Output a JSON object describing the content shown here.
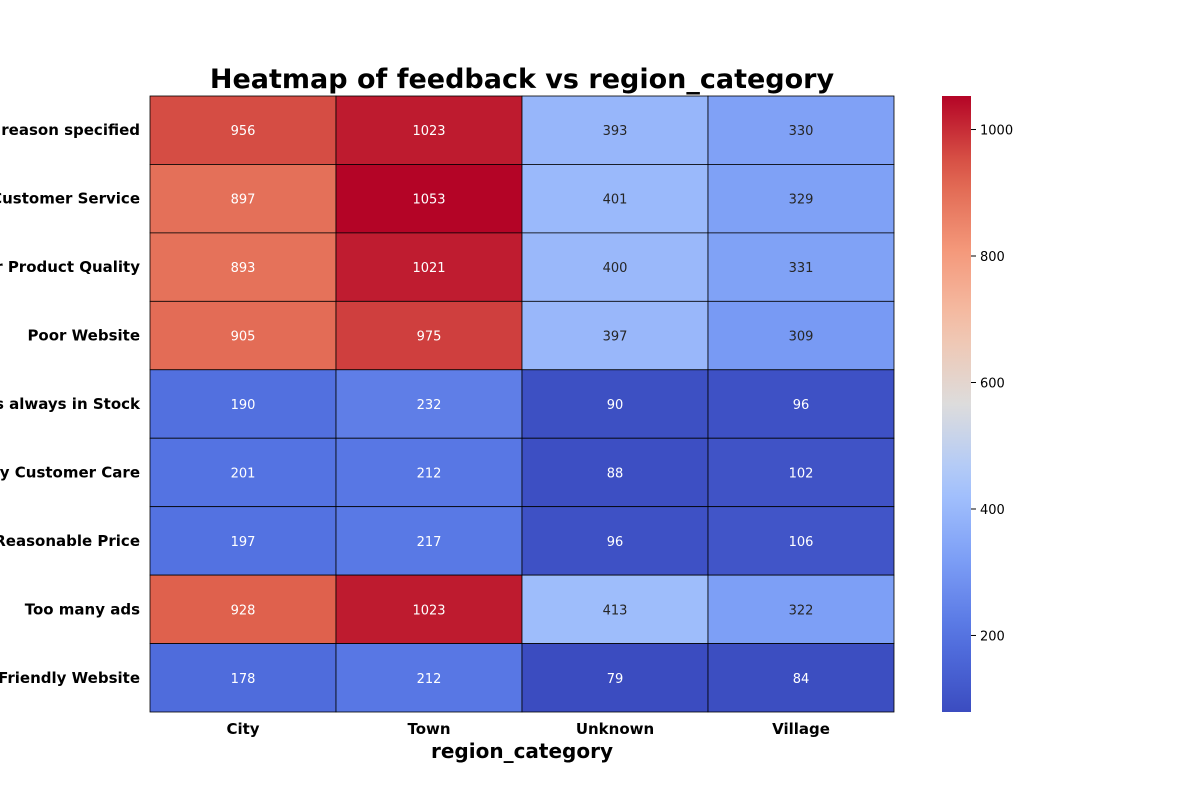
{
  "chart_data": {
    "type": "heatmap",
    "title": "Heatmap of feedback vs region_category",
    "xlabel": "region_category",
    "ylabel": "",
    "columns": [
      "City",
      "Town",
      "Unknown",
      "Village"
    ],
    "rows": [
      "No reason specified",
      "Poor Customer Service",
      "Poor Product Quality",
      "Poor Website",
      "Products always in Stock",
      "Quality Customer Care",
      "Reasonable Price",
      "Too many ads",
      "User Friendly Website"
    ],
    "values": [
      [
        956,
        1023,
        393,
        330
      ],
      [
        897,
        1053,
        401,
        329
      ],
      [
        893,
        1021,
        400,
        331
      ],
      [
        905,
        975,
        397,
        309
      ],
      [
        190,
        232,
        90,
        96
      ],
      [
        201,
        212,
        88,
        102
      ],
      [
        197,
        217,
        96,
        106
      ],
      [
        928,
        1023,
        413,
        322
      ],
      [
        178,
        212,
        79,
        84
      ]
    ],
    "colormap": "coolwarm",
    "vmin": 79,
    "vmax": 1053,
    "colorbar_ticks": [
      200,
      400,
      600,
      800,
      1000
    ],
    "annotations": true,
    "cell_border_color": "#000000"
  }
}
